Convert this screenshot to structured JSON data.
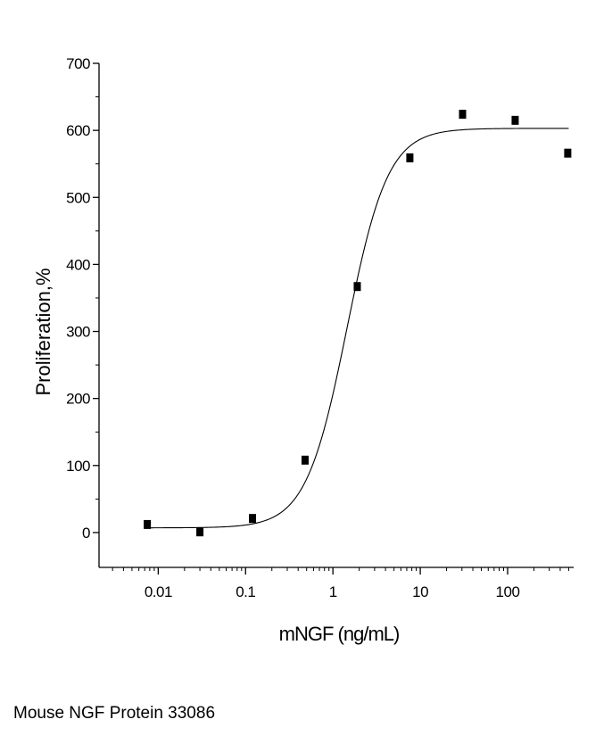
{
  "chart_data": {
    "type": "scatter",
    "xscale": "log",
    "xlabel": "mNGF (ng/mL)",
    "ylabel": "Proliferation,%",
    "xlim": [
      0.0021,
      570
    ],
    "ylim": [
      -52,
      700
    ],
    "yticks": [
      0,
      100,
      200,
      300,
      400,
      500,
      600,
      700
    ],
    "xticks": [
      0.01,
      0.1,
      1,
      10,
      100
    ],
    "xtick_labels": [
      "0.01",
      "0.1",
      "1",
      "10",
      "100"
    ],
    "grid": false,
    "series": [
      {
        "points": [
          {
            "x": 0.0075,
            "y": 12
          },
          {
            "x": 0.03,
            "y": 1
          },
          {
            "x": 0.12,
            "y": 21
          },
          {
            "x": 0.48,
            "y": 108
          },
          {
            "x": 1.9,
            "y": 367
          },
          {
            "x": 7.6,
            "y": 559
          },
          {
            "x": 30.5,
            "y": 624
          },
          {
            "x": 122,
            "y": 615
          },
          {
            "x": 488,
            "y": 566
          }
        ],
        "fit": {
          "bottom": 7,
          "top": 603,
          "ec50": 1.45,
          "hill": 1.85,
          "x_range": [
            0.0075,
            500
          ]
        }
      }
    ]
  },
  "caption": "Mouse NGF Protein 33086"
}
